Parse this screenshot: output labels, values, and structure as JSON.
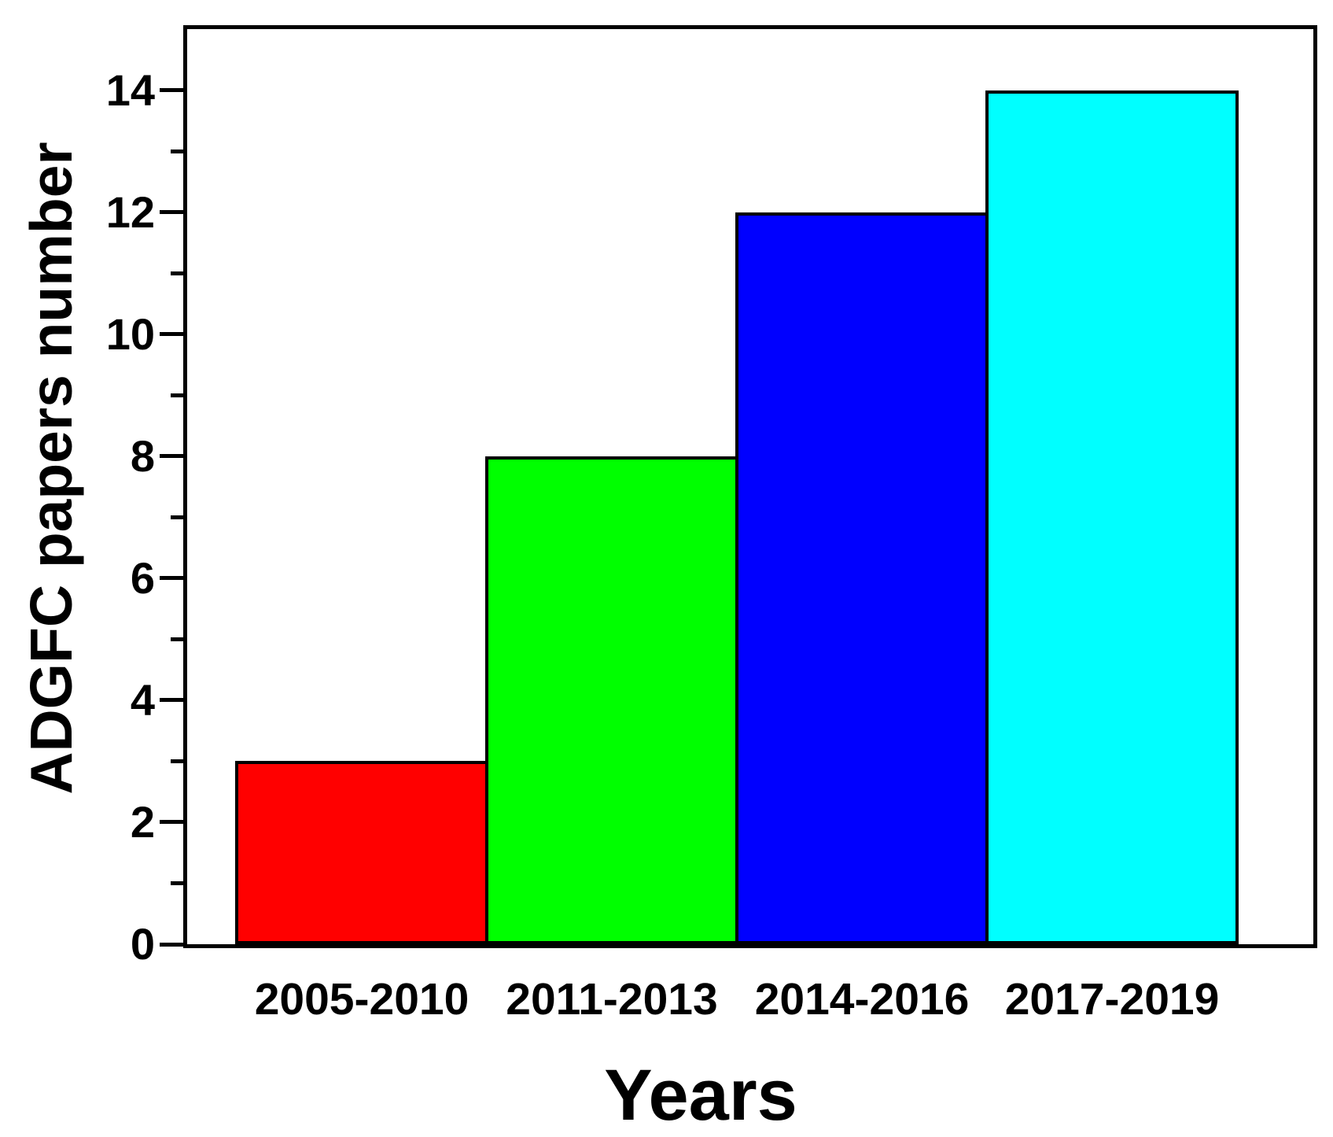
{
  "figure": {
    "background": "#ffffff",
    "frame_color": "#000000"
  },
  "chart_data": {
    "type": "bar",
    "title": "",
    "xlabel": "Years",
    "ylabel": "ADGFC papers number",
    "categories": [
      "2005-2010",
      "2011-2013",
      "2014-2016",
      "2017-2019"
    ],
    "values": [
      3,
      8,
      12,
      14
    ],
    "bar_colors": [
      "#ff0000",
      "#00ff00",
      "#0000ff",
      "#00ffff"
    ],
    "bar_border_color": "#000000",
    "ylim": [
      0,
      15
    ],
    "ytick_major_step": 2,
    "ytick_minor_step": 1,
    "ytick_labels": [
      "0",
      "2",
      "4",
      "6",
      "8",
      "10",
      "12",
      "14"
    ],
    "xtick_marks": "none",
    "grid": "off",
    "legend": "none",
    "axis_color": "#000000"
  }
}
